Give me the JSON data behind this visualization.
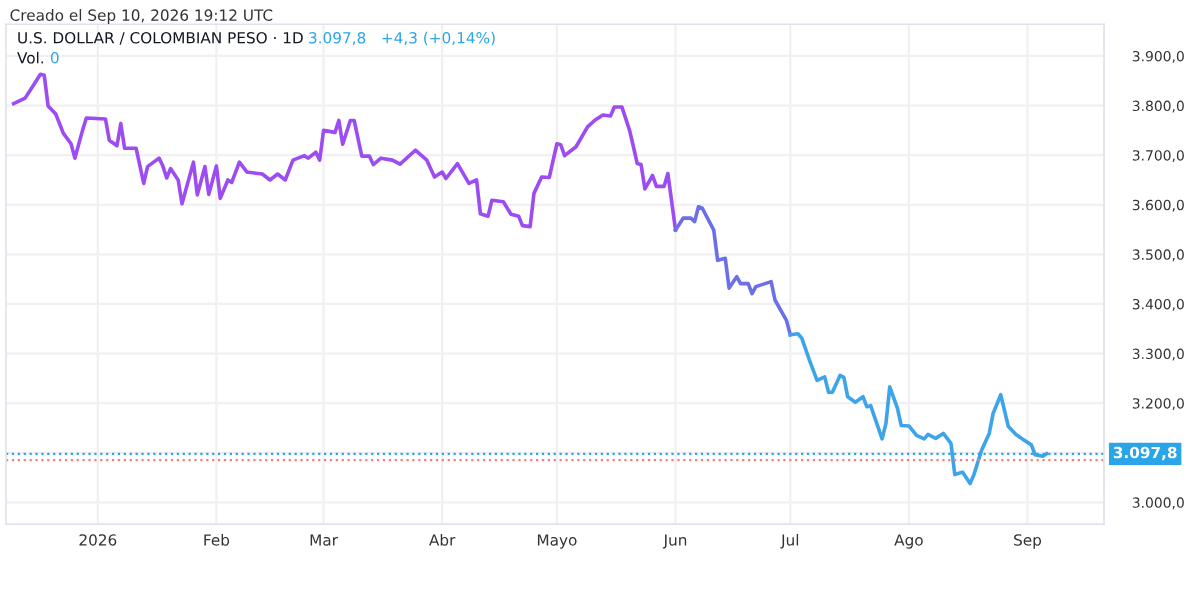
{
  "chart_data": {
    "type": "line",
    "title": "U.S. DOLLAR / COLOMBIAN PESO · 1D",
    "annotations": [
      "Creado el Sep 10, 2026 19:12 UTC",
      "3.097,8",
      "+4,3 (+0,14%)",
      "Vol.",
      "0"
    ],
    "series": [
      {
        "color": "#9c4cf0",
        "x": [
          "2025-12-10",
          "2025-12-13",
          "2025-12-15",
          "2025-12-17",
          "2025-12-18",
          "2025-12-19",
          "2025-12-21",
          "2025-12-23",
          "2025-12-25",
          "2025-12-26",
          "2025-12-28",
          "2025-12-29",
          "2026-01-03",
          "2026-01-04",
          "2026-01-06",
          "2026-01-07",
          "2026-01-08",
          "2026-01-11",
          "2026-01-13",
          "2026-01-14",
          "2026-01-17",
          "2026-01-18",
          "2026-01-19",
          "2026-01-20",
          "2026-01-22",
          "2026-01-23",
          "2026-01-26",
          "2026-01-27",
          "2026-01-29",
          "2026-01-30",
          "2026-02-01",
          "2026-02-02",
          "2026-02-04",
          "2026-02-05",
          "2026-02-07",
          "2026-02-09",
          "2026-02-13",
          "2026-02-15",
          "2026-02-17",
          "2026-02-19",
          "2026-02-21",
          "2026-02-24",
          "2026-02-25",
          "2026-02-27",
          "2026-02-28",
          "2026-03-01",
          "2026-03-04",
          "2026-03-05",
          "2026-03-06",
          "2026-03-08",
          "2026-03-09",
          "2026-03-11",
          "2026-03-13",
          "2026-03-14",
          "2026-03-16",
          "2026-03-19",
          "2026-03-21",
          "2026-03-25",
          "2026-03-28",
          "2026-03-30",
          "2026-04-01",
          "2026-04-02",
          "2026-04-05",
          "2026-04-08",
          "2026-04-10",
          "2026-04-11",
          "2026-04-13",
          "2026-04-14",
          "2026-04-17",
          "2026-04-19",
          "2026-04-21",
          "2026-04-22",
          "2026-04-24",
          "2026-04-25",
          "2026-04-27",
          "2026-04-29",
          "2026-05-01",
          "2026-05-02",
          "2026-05-03",
          "2026-05-06",
          "2026-05-09",
          "2026-05-11",
          "2026-05-13",
          "2026-05-15",
          "2026-05-16",
          "2026-05-18",
          "2026-05-20",
          "2026-05-21",
          "2026-05-22",
          "2026-05-23",
          "2026-05-24",
          "2026-05-26",
          "2026-05-27",
          "2026-05-29",
          "2026-05-30",
          "2026-06-01"
        ],
        "values": [
          3804,
          3815,
          3839,
          3863,
          3861,
          3799,
          3783,
          3744,
          3723,
          3694,
          3750,
          3775,
          3773,
          3730,
          3719,
          3764,
          3714,
          3714,
          3643,
          3677,
          3694,
          3678,
          3654,
          3673,
          3650,
          3602,
          3686,
          3620,
          3677,
          3621,
          3678,
          3613,
          3650,
          3645,
          3686,
          3666,
          3662,
          3650,
          3662,
          3650,
          3690,
          3699,
          3694,
          3706,
          3690,
          3750,
          3746,
          3770,
          3722,
          3770,
          3770,
          3698,
          3698,
          3681,
          3694,
          3690,
          3682,
          3710,
          3690,
          3656,
          3666,
          3653,
          3683,
          3643,
          3650,
          3582,
          3577,
          3609,
          3606,
          3581,
          3577,
          3558,
          3556,
          3623,
          3656,
          3655,
          3723,
          3721,
          3699,
          3717,
          3757,
          3771,
          3781,
          3779,
          3797,
          3797,
          3750,
          3717,
          3683,
          3681,
          3632,
          3659,
          3637,
          3637,
          3663,
          3549
        ]
      },
      {
        "color": "#6b6fe8",
        "x": [
          "2026-06-01",
          "2026-06-03",
          "2026-06-05",
          "2026-06-06",
          "2026-06-07",
          "2026-06-08",
          "2026-06-11",
          "2026-06-12",
          "2026-06-14",
          "2026-06-15",
          "2026-06-17",
          "2026-06-18",
          "2026-06-20",
          "2026-06-21",
          "2026-06-22",
          "2026-06-24",
          "2026-06-26",
          "2026-06-27",
          "2026-06-30",
          "2026-07-01"
        ],
        "values": [
          3549,
          3573,
          3573,
          3566,
          3596,
          3593,
          3549,
          3488,
          3492,
          3432,
          3455,
          3441,
          3441,
          3421,
          3435,
          3440,
          3445,
          3408,
          3367,
          3338
        ]
      },
      {
        "color": "#3ea4ea",
        "x": [
          "2026-07-01",
          "2026-07-03",
          "2026-07-04",
          "2026-07-06",
          "2026-07-08",
          "2026-07-10",
          "2026-07-11",
          "2026-07-12",
          "2026-07-14",
          "2026-07-15",
          "2026-07-16",
          "2026-07-18",
          "2026-07-20",
          "2026-07-21",
          "2026-07-22",
          "2026-07-25",
          "2026-07-26",
          "2026-07-27",
          "2026-07-29",
          "2026-07-30",
          "2026-08-01",
          "2026-08-03",
          "2026-08-05",
          "2026-08-06",
          "2026-08-08",
          "2026-08-10",
          "2026-08-12",
          "2026-08-13",
          "2026-08-15",
          "2026-08-17",
          "2026-08-18",
          "2026-08-20",
          "2026-08-22",
          "2026-08-23",
          "2026-08-25",
          "2026-08-27",
          "2026-08-29",
          "2026-08-31",
          "2026-09-02",
          "2026-09-03",
          "2026-09-05",
          "2026-09-06"
        ],
        "values": [
          3338,
          3340,
          3331,
          3287,
          3246,
          3253,
          3222,
          3222,
          3256,
          3252,
          3213,
          3202,
          3213,
          3193,
          3195,
          3128,
          3159,
          3233,
          3190,
          3155,
          3154,
          3135,
          3128,
          3137,
          3129,
          3139,
          3119,
          3056,
          3061,
          3038,
          3056,
          3105,
          3139,
          3179,
          3217,
          3153,
          3137,
          3126,
          3116,
          3096,
          3093,
          3098
        ]
      }
    ],
    "xlim": [
      "2025-12-08",
      "2026-09-21"
    ],
    "xticks": [
      {
        "value": "2026-01-01",
        "label": "2026"
      },
      {
        "value": "2026-02-01",
        "label": "Feb"
      },
      {
        "value": "2026-03-01",
        "label": "Mar"
      },
      {
        "value": "2026-04-01",
        "label": "Abr"
      },
      {
        "value": "2026-05-01",
        "label": "Mayo"
      },
      {
        "value": "2026-06-01",
        "label": "Jun"
      },
      {
        "value": "2026-07-01",
        "label": "Jul"
      },
      {
        "value": "2026-08-01",
        "label": "Ago"
      },
      {
        "value": "2026-09-01",
        "label": "Sep"
      }
    ],
    "ylim": [
      2956,
      3964
    ],
    "yticks": [
      {
        "value": 3000,
        "label": "3.000,0"
      },
      {
        "value": 3100,
        "label": null
      },
      {
        "value": 3200,
        "label": "3.200,0"
      },
      {
        "value": 3300,
        "label": "3.300,0"
      },
      {
        "value": 3400,
        "label": "3.400,0"
      },
      {
        "value": 3500,
        "label": "3.500,0"
      },
      {
        "value": 3600,
        "label": "3.600,0"
      },
      {
        "value": 3700,
        "label": "3.700,0"
      },
      {
        "value": 3800,
        "label": "3.800,0"
      },
      {
        "value": 3900,
        "label": "3.900,0"
      }
    ],
    "ref_lines": [
      {
        "axis": "y",
        "value": 3097.8,
        "label": "3.097,8",
        "color": "#2aa5e8",
        "line_style": "dotted"
      },
      {
        "axis": "y",
        "value": 3085,
        "color": "#f08080",
        "line_style": "dotted"
      }
    ],
    "grid": true,
    "legend": false,
    "marker": "none",
    "line_style": "solid"
  }
}
